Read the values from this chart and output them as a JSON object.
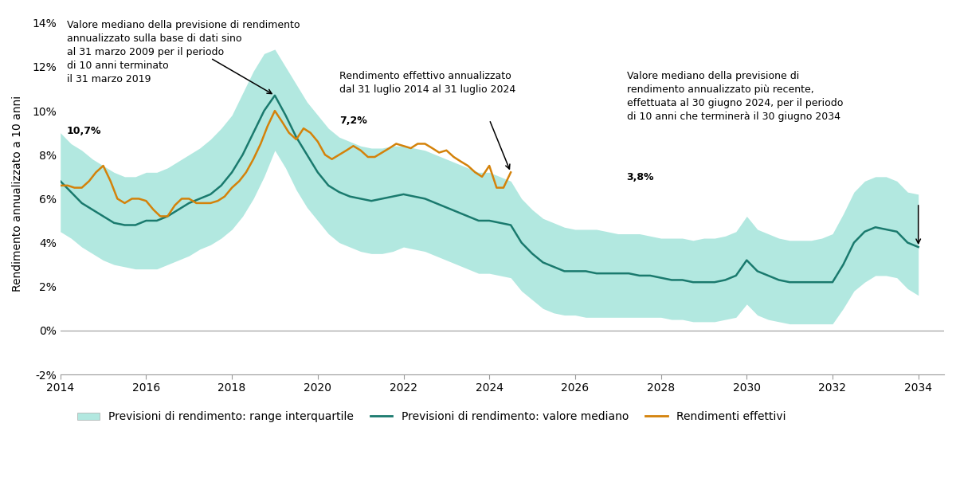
{
  "ylabel": "Rendimento annualizzato a 10 anni",
  "xlim": [
    2014,
    2034.6
  ],
  "ylim": [
    -0.02,
    0.145
  ],
  "yticks": [
    -0.02,
    0.0,
    0.02,
    0.04,
    0.06,
    0.08,
    0.1,
    0.12,
    0.14
  ],
  "ytick_labels": [
    "-2%",
    "0%",
    "2%",
    "4%",
    "6%",
    "8%",
    "10%",
    "12%",
    "14%"
  ],
  "xticks": [
    2014,
    2016,
    2018,
    2020,
    2022,
    2024,
    2026,
    2028,
    2030,
    2032,
    2034
  ],
  "median_color": "#1a7a6e",
  "actual_color": "#d4820a",
  "band_color": "#b2e8e0",
  "background_color": "#ffffff",
  "legend_labels": [
    "Previsioni di rendimento: range interquartile",
    "Previsioni di rendimento: valore mediano",
    "Rendimenti effettivi"
  ],
  "median_x": [
    2014.0,
    2014.25,
    2014.5,
    2014.75,
    2015.0,
    2015.25,
    2015.5,
    2015.75,
    2016.0,
    2016.25,
    2016.5,
    2016.75,
    2017.0,
    2017.25,
    2017.5,
    2017.75,
    2018.0,
    2018.25,
    2018.5,
    2018.75,
    2019.0,
    2019.25,
    2019.5,
    2019.75,
    2020.0,
    2020.25,
    2020.5,
    2020.75,
    2021.0,
    2021.25,
    2021.5,
    2021.75,
    2022.0,
    2022.25,
    2022.5,
    2022.75,
    2023.0,
    2023.25,
    2023.5,
    2023.75,
    2024.0,
    2024.25,
    2024.5,
    2024.75,
    2025.0,
    2025.25,
    2025.5,
    2025.75,
    2026.0,
    2026.25,
    2026.5,
    2026.75,
    2027.0,
    2027.25,
    2027.5,
    2027.75,
    2028.0,
    2028.25,
    2028.5,
    2028.75,
    2029.0,
    2029.25,
    2029.5,
    2029.75,
    2030.0,
    2030.25,
    2030.5,
    2030.75,
    2031.0,
    2031.25,
    2031.5,
    2031.75,
    2032.0,
    2032.25,
    2032.5,
    2032.75,
    2033.0,
    2033.25,
    2033.5,
    2033.75,
    2034.0
  ],
  "median_y": [
    0.068,
    0.063,
    0.058,
    0.055,
    0.052,
    0.049,
    0.048,
    0.048,
    0.05,
    0.05,
    0.052,
    0.055,
    0.058,
    0.06,
    0.062,
    0.066,
    0.072,
    0.08,
    0.09,
    0.1,
    0.107,
    0.098,
    0.088,
    0.08,
    0.072,
    0.066,
    0.063,
    0.061,
    0.06,
    0.059,
    0.06,
    0.061,
    0.062,
    0.061,
    0.06,
    0.058,
    0.056,
    0.054,
    0.052,
    0.05,
    0.05,
    0.049,
    0.048,
    0.04,
    0.035,
    0.031,
    0.029,
    0.027,
    0.027,
    0.027,
    0.026,
    0.026,
    0.026,
    0.026,
    0.025,
    0.025,
    0.024,
    0.023,
    0.023,
    0.022,
    0.022,
    0.022,
    0.023,
    0.025,
    0.032,
    0.027,
    0.025,
    0.023,
    0.022,
    0.022,
    0.022,
    0.022,
    0.022,
    0.03,
    0.04,
    0.045,
    0.047,
    0.046,
    0.045,
    0.04,
    0.038
  ],
  "band_upper": [
    0.09,
    0.085,
    0.082,
    0.078,
    0.075,
    0.072,
    0.07,
    0.07,
    0.072,
    0.072,
    0.074,
    0.077,
    0.08,
    0.083,
    0.087,
    0.092,
    0.098,
    0.108,
    0.118,
    0.126,
    0.128,
    0.12,
    0.112,
    0.104,
    0.098,
    0.092,
    0.088,
    0.086,
    0.084,
    0.083,
    0.083,
    0.084,
    0.084,
    0.083,
    0.082,
    0.08,
    0.078,
    0.076,
    0.074,
    0.072,
    0.072,
    0.07,
    0.068,
    0.06,
    0.055,
    0.051,
    0.049,
    0.047,
    0.046,
    0.046,
    0.046,
    0.045,
    0.044,
    0.044,
    0.044,
    0.043,
    0.042,
    0.042,
    0.042,
    0.041,
    0.042,
    0.042,
    0.043,
    0.045,
    0.052,
    0.046,
    0.044,
    0.042,
    0.041,
    0.041,
    0.041,
    0.042,
    0.044,
    0.053,
    0.063,
    0.068,
    0.07,
    0.07,
    0.068,
    0.063,
    0.062
  ],
  "band_lower": [
    0.045,
    0.042,
    0.038,
    0.035,
    0.032,
    0.03,
    0.029,
    0.028,
    0.028,
    0.028,
    0.03,
    0.032,
    0.034,
    0.037,
    0.039,
    0.042,
    0.046,
    0.052,
    0.06,
    0.07,
    0.082,
    0.074,
    0.064,
    0.056,
    0.05,
    0.044,
    0.04,
    0.038,
    0.036,
    0.035,
    0.035,
    0.036,
    0.038,
    0.037,
    0.036,
    0.034,
    0.032,
    0.03,
    0.028,
    0.026,
    0.026,
    0.025,
    0.024,
    0.018,
    0.014,
    0.01,
    0.008,
    0.007,
    0.007,
    0.006,
    0.006,
    0.006,
    0.006,
    0.006,
    0.006,
    0.006,
    0.006,
    0.005,
    0.005,
    0.004,
    0.004,
    0.004,
    0.005,
    0.006,
    0.012,
    0.007,
    0.005,
    0.004,
    0.003,
    0.003,
    0.003,
    0.003,
    0.003,
    0.01,
    0.018,
    0.022,
    0.025,
    0.025,
    0.024,
    0.019,
    0.016
  ],
  "actual_x": [
    2014.0,
    2014.17,
    2014.33,
    2014.5,
    2014.67,
    2014.83,
    2015.0,
    2015.17,
    2015.33,
    2015.5,
    2015.67,
    2015.83,
    2016.0,
    2016.17,
    2016.33,
    2016.5,
    2016.67,
    2016.83,
    2017.0,
    2017.17,
    2017.33,
    2017.5,
    2017.67,
    2017.83,
    2018.0,
    2018.17,
    2018.33,
    2018.5,
    2018.67,
    2018.83,
    2019.0,
    2019.17,
    2019.33,
    2019.5,
    2019.67,
    2019.83,
    2020.0,
    2020.17,
    2020.33,
    2020.5,
    2020.67,
    2020.83,
    2021.0,
    2021.17,
    2021.33,
    2021.5,
    2021.67,
    2021.83,
    2022.0,
    2022.17,
    2022.33,
    2022.5,
    2022.67,
    2022.83,
    2023.0,
    2023.17,
    2023.33,
    2023.5,
    2023.67,
    2023.83,
    2024.0,
    2024.17,
    2024.33,
    2024.5
  ],
  "actual_y": [
    0.066,
    0.066,
    0.065,
    0.065,
    0.068,
    0.072,
    0.075,
    0.068,
    0.06,
    0.058,
    0.06,
    0.06,
    0.059,
    0.055,
    0.052,
    0.052,
    0.057,
    0.06,
    0.06,
    0.058,
    0.058,
    0.058,
    0.059,
    0.061,
    0.065,
    0.068,
    0.072,
    0.078,
    0.085,
    0.093,
    0.1,
    0.095,
    0.09,
    0.087,
    0.092,
    0.09,
    0.086,
    0.08,
    0.078,
    0.08,
    0.082,
    0.084,
    0.082,
    0.079,
    0.079,
    0.081,
    0.083,
    0.085,
    0.084,
    0.083,
    0.085,
    0.085,
    0.083,
    0.081,
    0.082,
    0.079,
    0.077,
    0.075,
    0.072,
    0.07,
    0.075,
    0.065,
    0.065,
    0.072
  ]
}
